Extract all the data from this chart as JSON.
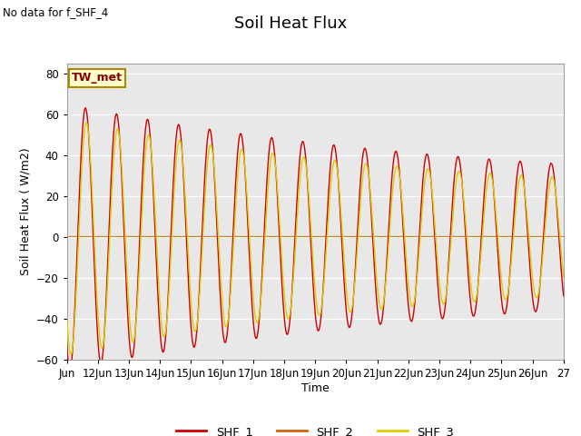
{
  "title": "Soil Heat Flux",
  "no_data_text": "No data for f_SHF_4",
  "tw_met_label": "TW_met",
  "xlabel": "Time",
  "ylabel": "Soil Heat Flux ( W/m2)",
  "ylim": [
    -60,
    85
  ],
  "yticks": [
    -60,
    -40,
    -20,
    0,
    20,
    40,
    60,
    80
  ],
  "background_color": "#e8e8e8",
  "fig_background": "#ffffff",
  "shf1_color": "#cc0000",
  "shf2_color": "#cc6600",
  "shf3_color": "#ddcc00",
  "legend_labels": [
    "SHF_1",
    "SHF_2",
    "SHF_3"
  ],
  "n_days": 16,
  "title_fontsize": 13,
  "label_fontsize": 9,
  "tick_fontsize": 8.5
}
